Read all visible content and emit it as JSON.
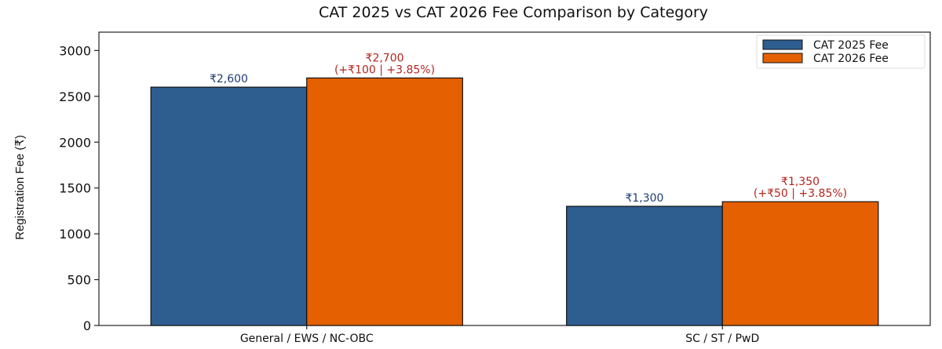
{
  "chart_data": {
    "type": "bar",
    "title": "CAT 2025 vs CAT 2026 Fee Comparison by Category",
    "xlabel": "",
    "ylabel": "Registration Fee (₹)",
    "ylim": [
      0,
      3200
    ],
    "yticks": [
      0,
      500,
      1000,
      1500,
      2000,
      2500,
      3000
    ],
    "categories": [
      "General / EWS / NC-OBC",
      "SC / ST / PwD"
    ],
    "series": [
      {
        "name": "CAT 2025 Fee",
        "values": [
          2600,
          1300
        ],
        "color": "#2e5d8f",
        "labels": [
          [
            "₹2,600"
          ],
          [
            "₹1,300"
          ]
        ]
      },
      {
        "name": "CAT 2026 Fee",
        "values": [
          2700,
          1350
        ],
        "color": "#e56000",
        "labels": [
          [
            "₹2,700",
            "(+₹100 | +3.85%)"
          ],
          [
            "₹1,350",
            "(+₹50 | +3.85%)"
          ]
        ]
      }
    ],
    "legend_position": "top-right",
    "grid": false
  }
}
